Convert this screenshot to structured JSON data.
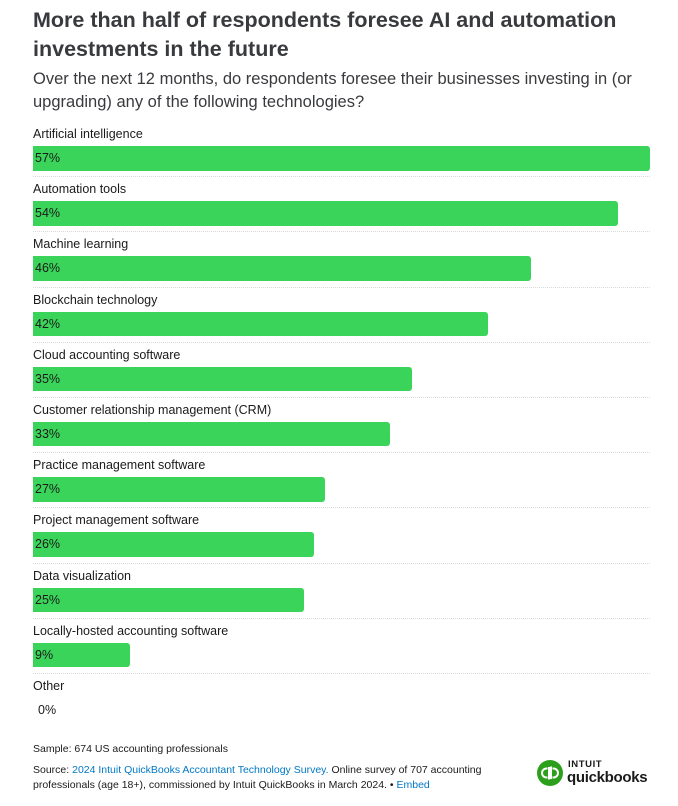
{
  "title": "More than half of respondents foresee AI and automation investments in the future",
  "subtitle": "Over the next 12 months, do respondents foresee their businesses investing in (or upgrading) any of the following technologies?",
  "chart_data": {
    "type": "bar",
    "orientation": "horizontal",
    "categories": [
      "Artificial intelligence",
      "Automation tools",
      "Machine learning",
      "Blockchain technology",
      "Cloud accounting software",
      "Customer relationship management (CRM)",
      "Practice management software",
      "Project management software",
      "Data visualization",
      "Locally-hosted accounting software",
      "Other"
    ],
    "values": [
      57,
      54,
      46,
      42,
      35,
      33,
      27,
      26,
      25,
      9,
      0
    ],
    "value_labels": [
      "57%",
      "54%",
      "46%",
      "42%",
      "35%",
      "33%",
      "27%",
      "26%",
      "25%",
      "9%",
      "0%"
    ],
    "xlim": [
      0,
      57
    ],
    "grid": false,
    "bar_color": "#3bd45a"
  },
  "footer": {
    "sample": "Sample: 674 US accounting professionals",
    "source_prefix": "Source: ",
    "source_link": "2024 Intuit QuickBooks Accountant Technology Survey.",
    "source_body": " Online survey of 707 accounting professionals (age 18+), commissioned by Intuit QuickBooks in March 2024.",
    "separator": " • ",
    "embed": "Embed"
  },
  "logo": {
    "icon": "quickbooks-logo-icon",
    "intuit": "INTUIT",
    "product": "quickbooks",
    "brand_color": "#2ca01c"
  },
  "colors": {
    "text": "#393a3d",
    "link": "#0077c5"
  }
}
